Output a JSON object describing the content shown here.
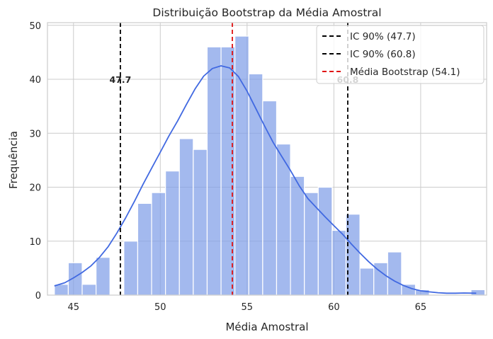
{
  "chart_data": {
    "type": "bar",
    "title": "Distribuição Bootstrap da Média Amostral",
    "xlabel": "Média Amostral",
    "ylabel": "Frequência",
    "xlim": [
      43.5,
      68.8
    ],
    "ylim": [
      0,
      50.5
    ],
    "xticks": [
      45,
      50,
      55,
      60,
      65
    ],
    "yticks": [
      0,
      10,
      20,
      30,
      40,
      50
    ],
    "grid": true,
    "legend_position": "top-right",
    "colors": {
      "bars": "#7f9ee8",
      "kde": "#4169e1",
      "ci_line": "#000000",
      "mean_line": "#e01010",
      "grid": "#cccccc",
      "frame": "#cccccc"
    },
    "bin_width": 0.8,
    "bins_start": 43.9,
    "histogram_counts": [
      2,
      6,
      2,
      7,
      0,
      10,
      17,
      19,
      23,
      29,
      27,
      46,
      46,
      48,
      41,
      36,
      28,
      22,
      19,
      20,
      12,
      15,
      5,
      6,
      8,
      2,
      1,
      0,
      0,
      0,
      1
    ],
    "kde_curve": {
      "x": [
        43.9,
        44.5,
        45.0,
        45.5,
        46.0,
        46.5,
        47.0,
        47.5,
        48.0,
        48.5,
        49.0,
        49.5,
        50.0,
        50.5,
        51.0,
        51.5,
        52.0,
        52.5,
        53.0,
        53.5,
        54.0,
        54.5,
        55.0,
        55.5,
        56.0,
        56.5,
        57.0,
        57.5,
        58.0,
        58.5,
        59.0,
        59.5,
        60.0,
        60.5,
        61.0,
        61.5,
        62.0,
        62.5,
        63.0,
        63.5,
        64.0,
        64.5,
        65.0,
        65.5,
        66.0,
        66.5,
        67.0,
        67.5,
        68.2
      ],
      "y": [
        1.7,
        2.3,
        3.2,
        4.2,
        5.4,
        7.0,
        9.0,
        11.5,
        14.3,
        17.3,
        20.5,
        23.5,
        26.5,
        29.5,
        32.3,
        35.3,
        38.2,
        40.6,
        42.0,
        42.5,
        42.1,
        40.5,
        37.8,
        34.6,
        31.4,
        28.3,
        25.7,
        23.1,
        20.3,
        17.9,
        16.2,
        14.5,
        12.9,
        11.3,
        9.5,
        7.8,
        6.2,
        4.8,
        3.6,
        2.6,
        1.8,
        1.2,
        0.8,
        0.6,
        0.45,
        0.35,
        0.35,
        0.4,
        0.35
      ]
    },
    "vlines": [
      {
        "name": "IC 90% (47.7)",
        "x": 47.7,
        "style": "dashed",
        "color": "#000000",
        "annotation": "47.7"
      },
      {
        "name": "IC 90% (60.8)",
        "x": 60.8,
        "style": "dashed",
        "color": "#000000",
        "annotation": "60.8"
      },
      {
        "name": "Média Bootstrap (54.1)",
        "x": 54.15,
        "style": "dashed",
        "color": "#e01010"
      }
    ],
    "annotation_y": 40
  }
}
